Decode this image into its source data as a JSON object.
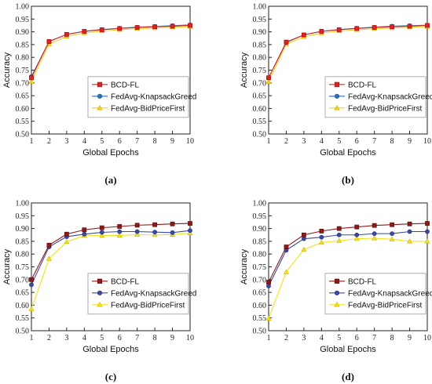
{
  "chart_data": [
    {
      "type": "line",
      "panel_label": "(a)",
      "xlabel": "Global Epochs",
      "ylabel": "Accuracy",
      "xlim": [
        1,
        10
      ],
      "ylim": [
        0.5,
        1.0
      ],
      "xticks": [
        1,
        2,
        3,
        4,
        5,
        6,
        7,
        8,
        9,
        10
      ],
      "yticks": [
        0.5,
        0.55,
        0.6,
        0.65,
        0.7,
        0.75,
        0.8,
        0.85,
        0.9,
        0.95,
        1.0
      ],
      "grid": false,
      "legend_position": "center-right",
      "x": [
        1,
        2,
        3,
        4,
        5,
        6,
        7,
        8,
        9,
        10
      ],
      "series": [
        {
          "name": "BCD-FL",
          "color": "#d62728",
          "edge": "#b40000",
          "marker": "square",
          "values": [
            0.72,
            0.862,
            0.89,
            0.902,
            0.908,
            0.913,
            0.917,
            0.92,
            0.922,
            0.925
          ]
        },
        {
          "name": "FedAvg-KnapsackGreed",
          "color": "#2f6db5",
          "edge": "#1f4f8c",
          "marker": "circle",
          "values": [
            0.725,
            0.862,
            0.89,
            0.902,
            0.909,
            0.914,
            0.918,
            0.921,
            0.924,
            0.927
          ]
        },
        {
          "name": "FedAvg-BidPriceFirst",
          "color": "#f2d21b",
          "edge": "#d4b400",
          "marker": "triangle",
          "values": [
            0.705,
            0.852,
            0.882,
            0.895,
            0.903,
            0.908,
            0.912,
            0.915,
            0.918,
            0.92
          ]
        }
      ]
    },
    {
      "type": "line",
      "panel_label": "(b)",
      "xlabel": "Global Epochs",
      "ylabel": "Accuracy",
      "xlim": [
        1,
        10
      ],
      "ylim": [
        0.5,
        1.0
      ],
      "xticks": [
        1,
        2,
        3,
        4,
        5,
        6,
        7,
        8,
        9,
        10
      ],
      "yticks": [
        0.5,
        0.55,
        0.6,
        0.65,
        0.7,
        0.75,
        0.8,
        0.85,
        0.9,
        0.95,
        1.0
      ],
      "grid": false,
      "legend_position": "center-right",
      "x": [
        1,
        2,
        3,
        4,
        5,
        6,
        7,
        8,
        9,
        10
      ],
      "series": [
        {
          "name": "BCD-FL",
          "color": "#d62728",
          "edge": "#b40000",
          "marker": "square",
          "values": [
            0.72,
            0.86,
            0.888,
            0.902,
            0.908,
            0.913,
            0.917,
            0.92,
            0.922,
            0.925
          ]
        },
        {
          "name": "FedAvg-KnapsackGreed",
          "color": "#2f6db5",
          "edge": "#1f4f8c",
          "marker": "circle",
          "values": [
            0.72,
            0.858,
            0.888,
            0.902,
            0.909,
            0.914,
            0.918,
            0.922,
            0.924,
            0.926
          ]
        },
        {
          "name": "FedAvg-BidPriceFirst",
          "color": "#f2d21b",
          "edge": "#d4b400",
          "marker": "triangle",
          "values": [
            0.705,
            0.852,
            0.88,
            0.895,
            0.903,
            0.908,
            0.912,
            0.915,
            0.918,
            0.92
          ]
        }
      ]
    },
    {
      "type": "line",
      "panel_label": "(c)",
      "xlabel": "Global Epochs",
      "ylabel": "Accuracy",
      "xlim": [
        1,
        10
      ],
      "ylim": [
        0.5,
        1.0
      ],
      "xticks": [
        1,
        2,
        3,
        4,
        5,
        6,
        7,
        8,
        9,
        10
      ],
      "yticks": [
        0.5,
        0.55,
        0.6,
        0.65,
        0.7,
        0.75,
        0.8,
        0.85,
        0.9,
        0.95,
        1.0
      ],
      "grid": false,
      "legend_position": "center-right",
      "x": [
        1,
        2,
        3,
        4,
        5,
        6,
        7,
        8,
        9,
        10
      ],
      "series": [
        {
          "name": "BCD-FL",
          "color": "#8b1a1a",
          "edge": "#5a0c0c",
          "marker": "square",
          "values": [
            0.7,
            0.835,
            0.878,
            0.895,
            0.903,
            0.908,
            0.913,
            0.915,
            0.918,
            0.92
          ]
        },
        {
          "name": "FedAvg-KnapsackGreed",
          "color": "#3b4aa0",
          "edge": "#26306e",
          "marker": "circle",
          "values": [
            0.68,
            0.828,
            0.868,
            0.878,
            0.885,
            0.888,
            0.888,
            0.886,
            0.884,
            0.892
          ]
        },
        {
          "name": "FedAvg-BidPriceFirst",
          "color": "#f2e21b",
          "edge": "#c9b800",
          "marker": "triangle",
          "values": [
            0.585,
            0.782,
            0.848,
            0.872,
            0.872,
            0.873,
            0.876,
            0.875,
            0.876,
            0.882
          ]
        }
      ]
    },
    {
      "type": "line",
      "panel_label": "(d)",
      "xlabel": "Global Epochs",
      "ylabel": "Accuracy",
      "xlim": [
        1,
        10
      ],
      "ylim": [
        0.5,
        1.0
      ],
      "xticks": [
        1,
        2,
        3,
        4,
        5,
        6,
        7,
        8,
        9,
        10
      ],
      "yticks": [
        0.5,
        0.55,
        0.6,
        0.65,
        0.7,
        0.75,
        0.8,
        0.85,
        0.9,
        0.95,
        1.0
      ],
      "grid": false,
      "legend_position": "center-right",
      "x": [
        1,
        2,
        3,
        4,
        5,
        6,
        7,
        8,
        9,
        10
      ],
      "series": [
        {
          "name": "BCD-FL",
          "color": "#8b1a1a",
          "edge": "#5a0c0c",
          "marker": "square",
          "values": [
            0.69,
            0.828,
            0.875,
            0.89,
            0.9,
            0.906,
            0.912,
            0.915,
            0.918,
            0.92
          ]
        },
        {
          "name": "FedAvg-KnapsackGreed",
          "color": "#3b4aa0",
          "edge": "#26306e",
          "marker": "circle",
          "values": [
            0.675,
            0.815,
            0.86,
            0.866,
            0.875,
            0.875,
            0.88,
            0.88,
            0.888,
            0.888
          ]
        },
        {
          "name": "FedAvg-BidPriceFirst",
          "color": "#f2e21b",
          "edge": "#c9b800",
          "marker": "triangle",
          "values": [
            0.548,
            0.73,
            0.818,
            0.845,
            0.852,
            0.86,
            0.862,
            0.858,
            0.85,
            0.85
          ]
        }
      ]
    }
  ]
}
